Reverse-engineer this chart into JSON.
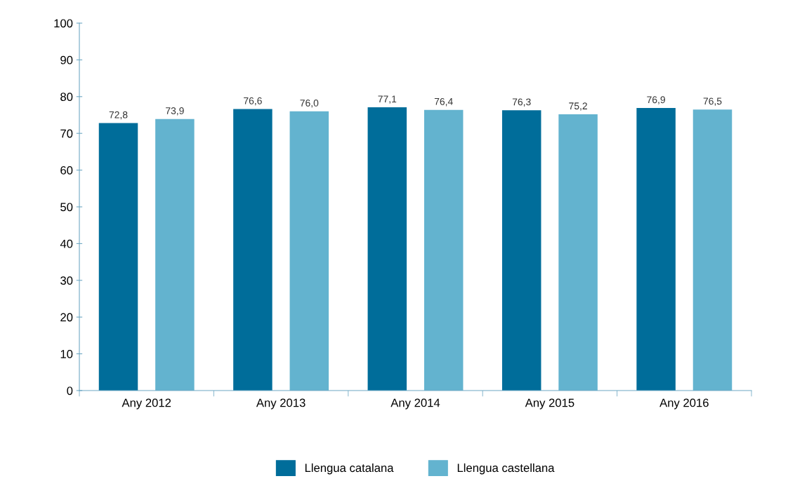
{
  "chart_data": {
    "type": "bar",
    "categories": [
      "Any 2012",
      "Any 2013",
      "Any 2014",
      "Any 2015",
      "Any 2016"
    ],
    "series": [
      {
        "name": "Llengua catalana",
        "color": "#006d9a",
        "values": [
          72.8,
          76.6,
          77.1,
          76.3,
          76.9
        ],
        "value_labels": [
          "72,8",
          "76,6",
          "77,1",
          "76,3",
          "76,9"
        ]
      },
      {
        "name": "Llengua castellana",
        "color": "#63b3cf",
        "values": [
          73.9,
          76.0,
          76.4,
          75.2,
          76.5
        ],
        "value_labels": [
          "73,9",
          "76,0",
          "76,4",
          "75,2",
          "76,5"
        ]
      }
    ],
    "ylim": [
      0,
      100
    ],
    "yticks": [
      0,
      10,
      20,
      30,
      40,
      50,
      60,
      70,
      80,
      90,
      100
    ],
    "grid": false,
    "legend": "bottom"
  }
}
